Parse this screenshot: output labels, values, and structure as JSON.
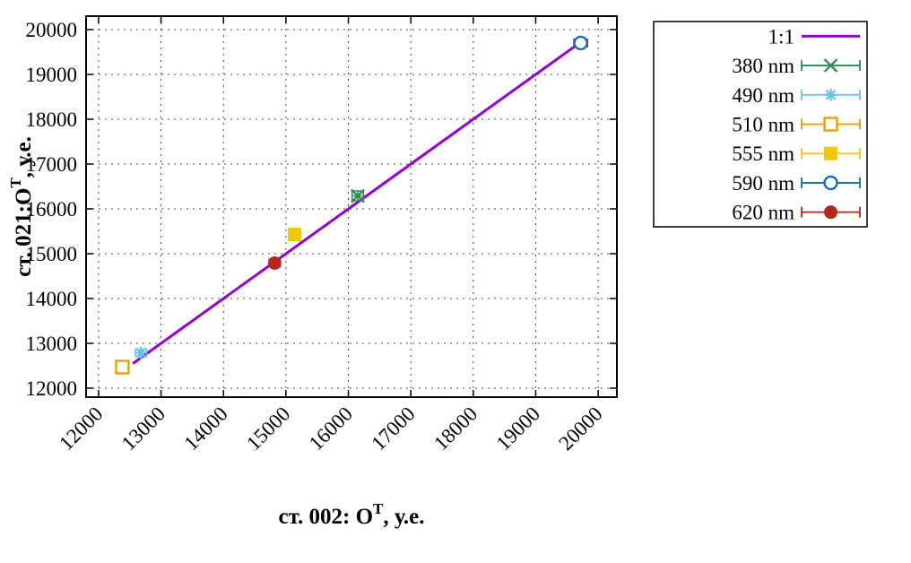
{
  "chart_data": {
    "type": "scatter",
    "title": "",
    "xlabel": {
      "prefix": "ст. 002: O",
      "superscript": "T",
      "suffix": ", у.е."
    },
    "ylabel": {
      "prefix": "ст. 021:O",
      "superscript": "T",
      "suffix": ", у.е."
    },
    "xlim": [
      11800,
      20300
    ],
    "ylim": [
      11800,
      20300
    ],
    "xticks": [
      12000,
      13000,
      14000,
      15000,
      16000,
      17000,
      18000,
      19000,
      20000
    ],
    "yticks": [
      12000,
      13000,
      14000,
      15000,
      16000,
      17000,
      18000,
      19000,
      20000
    ],
    "grid": true,
    "legend_position": "outside-top-right",
    "reference_line": {
      "label": "1:1",
      "color": "#9400d3",
      "x": [
        12550,
        19760
      ],
      "y": [
        12550,
        19760
      ]
    },
    "series": [
      {
        "name": "380 nm",
        "color": "#2e8b57",
        "marker": "cross",
        "points": [
          {
            "x": 16150,
            "y": 16290,
            "xerr": 90,
            "yerr": 110
          }
        ]
      },
      {
        "name": "490 nm",
        "color": "#63c5ea",
        "marker": "asterisk",
        "points": [
          {
            "x": 12680,
            "y": 12790,
            "xerr": 90,
            "yerr": 70
          }
        ]
      },
      {
        "name": "510 nm",
        "color": "#e69f00",
        "marker": "open-square",
        "points": [
          {
            "x": 12380,
            "y": 12470,
            "xerr": 90,
            "yerr": 70
          }
        ]
      },
      {
        "name": "555 nm",
        "color": "#f6c600",
        "marker": "filled-square",
        "points": [
          {
            "x": 15140,
            "y": 15430,
            "xerr": 90,
            "yerr": 70
          }
        ]
      },
      {
        "name": "590 nm",
        "color": "#1467b4",
        "marker": "open-circle",
        "points": [
          {
            "x": 19720,
            "y": 19700,
            "xerr": 110,
            "yerr": 70
          }
        ]
      },
      {
        "name": "620 nm",
        "color": "#b2291c",
        "marker": "filled-circle",
        "points": [
          {
            "x": 14820,
            "y": 14790,
            "xerr": 90,
            "yerr": 70
          }
        ]
      }
    ],
    "colors": {
      "grid": "#444444",
      "border": "#000000",
      "background": "#ffffff"
    }
  }
}
